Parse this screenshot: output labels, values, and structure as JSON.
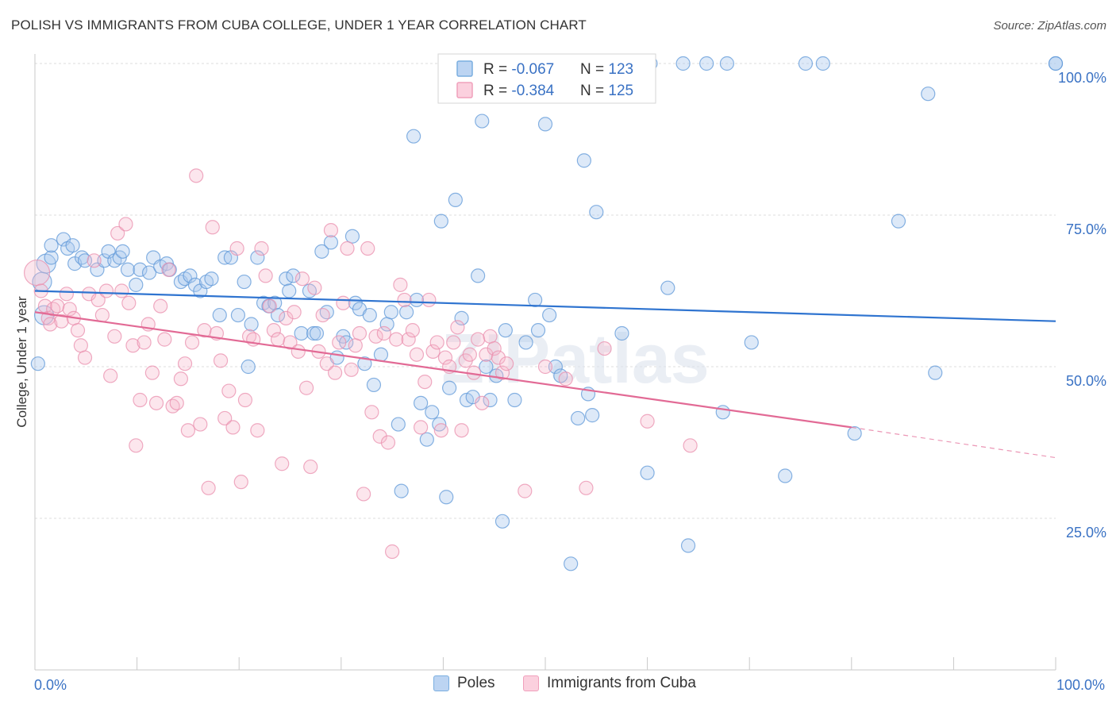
{
  "title": "POLISH VS IMMIGRANTS FROM CUBA COLLEGE, UNDER 1 YEAR CORRELATION CHART",
  "source": "Source: ZipAtlas.com",
  "watermark": "ZIPatlas",
  "chart_data": {
    "type": "scatter",
    "xlabel": "",
    "ylabel": "College, Under 1 year",
    "xlim": [
      0,
      100
    ],
    "ylim": [
      0,
      100
    ],
    "x_tick_labels": [
      "0.0%",
      "100.0%"
    ],
    "y_tick_values": [
      25,
      50,
      75,
      100
    ],
    "y_tick_labels": [
      "25.0%",
      "50.0%",
      "75.0%",
      "100.0%"
    ],
    "grid": true,
    "legend_placement": "top-center",
    "stats": [
      {
        "r_label": "R = ",
        "r": "-0.067",
        "n_label": "N = ",
        "n": "123"
      },
      {
        "r_label": "R = ",
        "r": "-0.384",
        "n_label": "N = ",
        "n": "125"
      }
    ],
    "series": [
      {
        "name": "Poles",
        "color": "#7aaee0",
        "line_color": "#2f74d0",
        "trend": {
          "x": [
            0,
            100
          ],
          "y": [
            62.5,
            57.5
          ]
        },
        "points": [
          [
            0.3,
            50.5
          ],
          [
            0.7,
            64
          ],
          [
            0.9,
            58.5
          ],
          [
            1.1,
            67
          ],
          [
            1.6,
            68
          ],
          [
            1.6,
            70
          ],
          [
            2.8,
            71
          ],
          [
            3.2,
            69.5
          ],
          [
            3.7,
            70
          ],
          [
            3.9,
            67
          ],
          [
            4.6,
            68
          ],
          [
            4.9,
            67.5
          ],
          [
            6.1,
            66
          ],
          [
            6.8,
            67.5
          ],
          [
            7.2,
            69
          ],
          [
            7.8,
            67.5
          ],
          [
            8.3,
            68
          ],
          [
            8.6,
            69
          ],
          [
            9.1,
            66
          ],
          [
            9.9,
            63.5
          ],
          [
            10.3,
            66
          ],
          [
            11.2,
            65.5
          ],
          [
            11.6,
            68
          ],
          [
            12.3,
            66.5
          ],
          [
            12.9,
            67
          ],
          [
            13.2,
            66
          ],
          [
            14.3,
            64
          ],
          [
            14.7,
            64.5
          ],
          [
            15.2,
            65
          ],
          [
            15.7,
            63.5
          ],
          [
            16.2,
            62.5
          ],
          [
            16.8,
            64
          ],
          [
            17.3,
            64.5
          ],
          [
            18.1,
            58.5
          ],
          [
            18.6,
            68
          ],
          [
            19.2,
            68
          ],
          [
            19.9,
            58.5
          ],
          [
            20.5,
            64
          ],
          [
            20.9,
            50
          ],
          [
            21.2,
            57
          ],
          [
            21.8,
            68
          ],
          [
            22.4,
            60.5
          ],
          [
            22.9,
            60
          ],
          [
            23.5,
            60.5
          ],
          [
            23.8,
            58.5
          ],
          [
            24.6,
            64.5
          ],
          [
            24.9,
            62.5
          ],
          [
            25.3,
            65
          ],
          [
            26.1,
            55.5
          ],
          [
            26.9,
            62.5
          ],
          [
            27.3,
            55.5
          ],
          [
            27.6,
            55.5
          ],
          [
            28.1,
            69
          ],
          [
            28.6,
            59
          ],
          [
            29.0,
            70.5
          ],
          [
            29.6,
            51.5
          ],
          [
            30.2,
            55
          ],
          [
            30.5,
            54
          ],
          [
            31.1,
            71.5
          ],
          [
            31.4,
            60.5
          ],
          [
            31.8,
            59.5
          ],
          [
            32.3,
            50.5
          ],
          [
            32.8,
            58.5
          ],
          [
            33.2,
            47
          ],
          [
            33.9,
            52
          ],
          [
            34.5,
            57
          ],
          [
            34.9,
            59
          ],
          [
            35.6,
            40.5
          ],
          [
            35.9,
            29.5
          ],
          [
            36.4,
            59
          ],
          [
            37.1,
            88
          ],
          [
            37.4,
            61
          ],
          [
            37.8,
            44
          ],
          [
            38.4,
            38
          ],
          [
            38.9,
            42.5
          ],
          [
            39.6,
            40.5
          ],
          [
            39.8,
            74
          ],
          [
            40.3,
            28.5
          ],
          [
            40.6,
            46.5
          ],
          [
            41.2,
            77.5
          ],
          [
            41.8,
            58
          ],
          [
            42.3,
            44.5
          ],
          [
            42.9,
            45
          ],
          [
            43.4,
            65
          ],
          [
            43.8,
            90.5
          ],
          [
            44.2,
            50
          ],
          [
            44.6,
            44.5
          ],
          [
            45.2,
            48.5
          ],
          [
            45.8,
            24.5
          ],
          [
            46.1,
            56
          ],
          [
            47.0,
            44.5
          ],
          [
            48.1,
            54
          ],
          [
            49.0,
            61
          ],
          [
            49.3,
            56
          ],
          [
            50.0,
            90
          ],
          [
            50.4,
            58.5
          ],
          [
            51.0,
            50
          ],
          [
            51.5,
            48.5
          ],
          [
            52.5,
            17.5
          ],
          [
            53.2,
            41.5
          ],
          [
            53.8,
            84
          ],
          [
            54.2,
            45.5
          ],
          [
            54.6,
            42
          ],
          [
            55.0,
            75.5
          ],
          [
            57.5,
            55.5
          ],
          [
            60.0,
            32.5
          ],
          [
            60.3,
            100
          ],
          [
            62.0,
            63
          ],
          [
            63.5,
            100
          ],
          [
            64.0,
            20.5
          ],
          [
            65.8,
            100
          ],
          [
            67.4,
            42.5
          ],
          [
            67.8,
            100
          ],
          [
            70.2,
            54
          ],
          [
            73.5,
            32
          ],
          [
            75.5,
            100
          ],
          [
            77.2,
            100
          ],
          [
            80.3,
            39
          ],
          [
            84.6,
            74
          ],
          [
            87.5,
            95
          ],
          [
            88.2,
            49
          ],
          [
            100,
            100
          ],
          [
            100,
            100
          ]
        ]
      },
      {
        "name": "Immigrants from Cuba",
        "color": "#f0a0bc",
        "line_color": "#e26a95",
        "trend": {
          "x": [
            0,
            80
          ],
          "y": [
            59,
            40
          ]
        },
        "trend_dashed": {
          "x": [
            80,
            100
          ],
          "y": [
            40,
            35
          ]
        },
        "points": [
          [
            0.2,
            65.5
          ],
          [
            0.6,
            62.5
          ],
          [
            1.0,
            60
          ],
          [
            1.3,
            58
          ],
          [
            1.5,
            57
          ],
          [
            1.8,
            59.5
          ],
          [
            2.2,
            60
          ],
          [
            2.6,
            57.5
          ],
          [
            3.1,
            62
          ],
          [
            3.4,
            59.5
          ],
          [
            3.8,
            58
          ],
          [
            4.2,
            56
          ],
          [
            4.5,
            53.5
          ],
          [
            4.9,
            51.5
          ],
          [
            5.3,
            62
          ],
          [
            5.8,
            67.5
          ],
          [
            6.2,
            61
          ],
          [
            6.6,
            58.5
          ],
          [
            7.0,
            62.5
          ],
          [
            7.4,
            48.5
          ],
          [
            7.8,
            55
          ],
          [
            8.1,
            72
          ],
          [
            8.5,
            62.5
          ],
          [
            8.9,
            73.5
          ],
          [
            9.2,
            60.5
          ],
          [
            9.6,
            53.5
          ],
          [
            9.9,
            37
          ],
          [
            10.3,
            44.5
          ],
          [
            10.7,
            54
          ],
          [
            11.1,
            57
          ],
          [
            11.5,
            49
          ],
          [
            11.9,
            44
          ],
          [
            12.3,
            60
          ],
          [
            12.7,
            54.5
          ],
          [
            13.1,
            66
          ],
          [
            13.5,
            43.5
          ],
          [
            13.9,
            44
          ],
          [
            14.3,
            48
          ],
          [
            14.7,
            50.5
          ],
          [
            15.0,
            39.5
          ],
          [
            15.4,
            54
          ],
          [
            15.8,
            81.5
          ],
          [
            16.2,
            40.5
          ],
          [
            16.6,
            56
          ],
          [
            17.0,
            30
          ],
          [
            17.4,
            73
          ],
          [
            17.8,
            55.5
          ],
          [
            18.2,
            51
          ],
          [
            18.6,
            41.5
          ],
          [
            19.0,
            46
          ],
          [
            19.4,
            40
          ],
          [
            19.8,
            69.5
          ],
          [
            20.2,
            31
          ],
          [
            20.6,
            44.5
          ],
          [
            21.0,
            55
          ],
          [
            21.4,
            54.5
          ],
          [
            21.8,
            39.5
          ],
          [
            22.2,
            69.5
          ],
          [
            22.6,
            65
          ],
          [
            23.0,
            60
          ],
          [
            23.4,
            56
          ],
          [
            23.8,
            54.5
          ],
          [
            24.2,
            34
          ],
          [
            24.6,
            58
          ],
          [
            25.0,
            54
          ],
          [
            25.4,
            59
          ],
          [
            25.8,
            52.5
          ],
          [
            26.2,
            64.5
          ],
          [
            26.6,
            46.5
          ],
          [
            27.0,
            33.5
          ],
          [
            27.4,
            63
          ],
          [
            27.8,
            52.5
          ],
          [
            28.2,
            58.5
          ],
          [
            28.6,
            50.5
          ],
          [
            29.0,
            72.5
          ],
          [
            29.4,
            49
          ],
          [
            29.8,
            54
          ],
          [
            30.2,
            60.5
          ],
          [
            30.6,
            69.5
          ],
          [
            31.0,
            49.5
          ],
          [
            31.4,
            53.5
          ],
          [
            31.8,
            55.5
          ],
          [
            32.2,
            29
          ],
          [
            32.6,
            69.5
          ],
          [
            33.0,
            42.5
          ],
          [
            33.4,
            55
          ],
          [
            33.8,
            38.5
          ],
          [
            34.2,
            55.5
          ],
          [
            34.6,
            37.5
          ],
          [
            35.0,
            19.5
          ],
          [
            35.4,
            54.5
          ],
          [
            35.8,
            63.5
          ],
          [
            36.2,
            61
          ],
          [
            36.6,
            54.5
          ],
          [
            37.0,
            56
          ],
          [
            37.4,
            52
          ],
          [
            37.8,
            40
          ],
          [
            38.2,
            47.5
          ],
          [
            38.6,
            61
          ],
          [
            39.0,
            52.5
          ],
          [
            39.4,
            54
          ],
          [
            39.8,
            39.5
          ],
          [
            40.2,
            51.5
          ],
          [
            40.6,
            50
          ],
          [
            41.0,
            54
          ],
          [
            41.4,
            56.5
          ],
          [
            41.8,
            39.5
          ],
          [
            42.2,
            51
          ],
          [
            42.6,
            52
          ],
          [
            43.0,
            49
          ],
          [
            43.4,
            54.5
          ],
          [
            43.8,
            44
          ],
          [
            44.2,
            52
          ],
          [
            44.6,
            55
          ],
          [
            45.0,
            53
          ],
          [
            45.4,
            51.5
          ],
          [
            45.8,
            49
          ],
          [
            46.2,
            50.5
          ],
          [
            48.0,
            29.5
          ],
          [
            50.0,
            50
          ],
          [
            52.0,
            48
          ],
          [
            54.0,
            30
          ],
          [
            55.8,
            53
          ],
          [
            60.0,
            41
          ],
          [
            64.2,
            37
          ]
        ]
      }
    ]
  }
}
